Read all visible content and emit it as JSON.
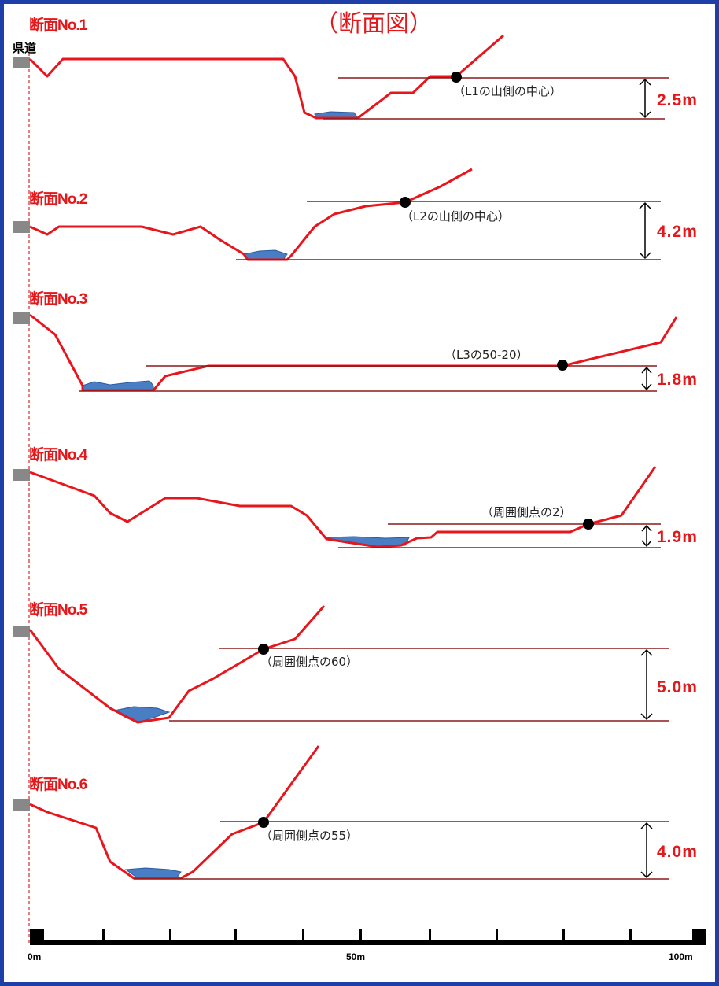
{
  "title": "（断面図）",
  "road_label": "県道",
  "colors": {
    "frame": "#1f3fa8",
    "profile": "#e8161c",
    "water": "#4a7ec4",
    "reference_line": "#8b1a1a",
    "marker": "#000000"
  },
  "sections": [
    {
      "title": "断面No.1",
      "annotation": "（L1の山側の中心）",
      "height": "2.5m"
    },
    {
      "title": "断面No.2",
      "annotation": "（L2の山側の中心）",
      "height": "4.2m"
    },
    {
      "title": "断面No.3",
      "annotation": "（L3の50-20）",
      "height": "1.8m"
    },
    {
      "title": "断面No.4",
      "annotation": "（周囲側点の2）",
      "height": "1.9m"
    },
    {
      "title": "断面No.5",
      "annotation": "（周囲側点の60）",
      "height": "5.0m"
    },
    {
      "title": "断面No.6",
      "annotation": "（周囲側点の55）",
      "height": "4.0m"
    }
  ],
  "scale": {
    "labels": [
      "0m",
      "50m",
      "100m"
    ]
  }
}
